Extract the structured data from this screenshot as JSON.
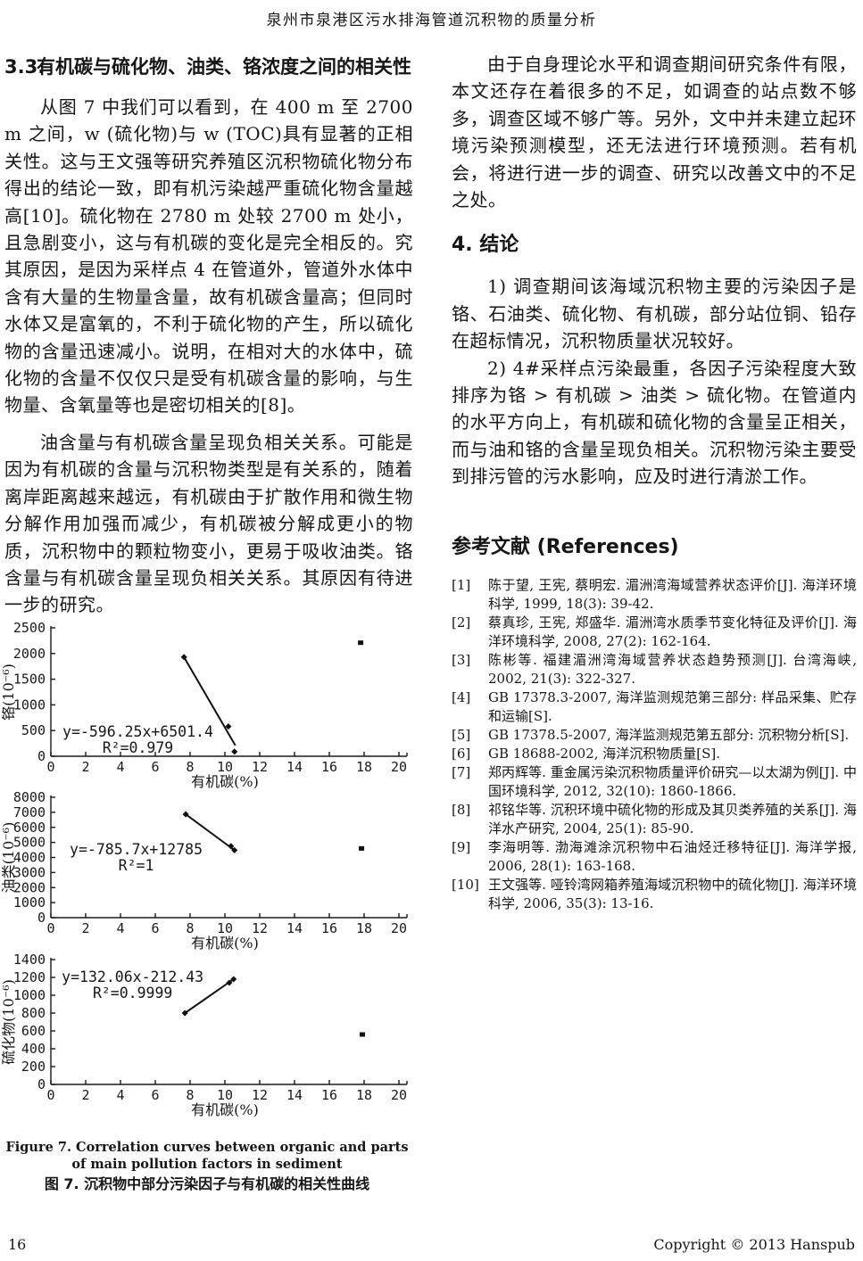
{
  "header": {
    "title": "泉州市泉港区污水排海管道沉积物的质量分析"
  },
  "left_column": {
    "section": {
      "number": "3.3.",
      "title": "有机碳与硫化物、油类、铬浓度之间的相关性"
    },
    "paragraphs": [
      "从图 7 中我们可以看到，在 400 m 至 2700 m 之间，w (硫化物)与 w (TOC)具有显著的正相关性。这与王文强等研究养殖区沉积物硫化物分布得出的结论一致，即有机污染越严重硫化物含量越高[10]。硫化物在 2780 m 处较 2700 m 处小，且急剧变小，这与有机碳的变化是完全相反的。究其原因，是因为采样点 4 在管道外，管道外水体中含有大量的生物量含量，故有机碳含量高；但同时水体又是富氧的，不利于硫化物的产生，所以硫化物的含量迅速减小。说明，在相对大的水体中，硫化物的含量不仅仅只是受有机碳含量的影响，与生物量、含氧量等也是密切相关的[8]。",
      "油含量与有机碳含量呈现负相关关系。可能是因为有机碳的含量与沉积物类型是有关系的，随着离岸距离越来越远，有机碳由于扩散作用和微生物分解作用加强而减少，有机碳被分解成更小的物质，沉积物中的颗粒物变小，更易于吸收油类。铬含量与有机碳含量呈现负相关关系。其原因有待进一步的研究。"
    ]
  },
  "right_column": {
    "paragraph_intro": "由于自身理论水平和调查期间研究条件有限，本文还存在着很多的不足，如调查的站点数不够多，调查区域不够广等。另外，文中并未建立起环境污染预测模型，还无法进行环境预测。若有机会，将进行进一步的调查、研究以改善文中的不足之处。",
    "section4_heading": "4. 结论",
    "conclusions": [
      "1) 调查期间该海域沉积物主要的污染因子是铬、石油类、硫化物、有机碳，部分站位铜、铅存在超标情况，沉积物质量状况较好。",
      "2) 4#采样点污染最重，各因子污染程度大致排序为铬 > 有机碳 > 油类 > 硫化物。在管道内的水平方向上，有机碳和硫化物的含量呈正相关，而与油和铬的含量呈现负相关。沉积物污染主要受到排污管的污水影响，应及时进行清淤工作。"
    ],
    "references_heading": "参考文献 (References)",
    "references": [
      {
        "num": "[1]",
        "text": "陈于望, 王宪, 蔡明宏. 湄洲湾海域营养状态评价[J]. 海洋环境科学, 1999, 18(3): 39-42."
      },
      {
        "num": "[2]",
        "text": "蔡真珍, 王宪, 郑盛华. 湄洲湾水质季节变化特征及评价[J]. 海洋环境科学, 2008, 27(2): 162-164."
      },
      {
        "num": "[3]",
        "text": "陈彬等. 福建湄洲湾海域营养状态趋势预测[J]. 台湾海峡, 2002, 21(3): 322-327."
      },
      {
        "num": "[4]",
        "text": "GB 17378.3-2007, 海洋监测规范第三部分: 样品采集、贮存和运输[S]."
      },
      {
        "num": "[5]",
        "text": "GB 17378.5-2007, 海洋监测规范第五部分: 沉积物分析[S]."
      },
      {
        "num": "[6]",
        "text": "GB 18688-2002, 海洋沉积物质量[S]."
      },
      {
        "num": "[7]",
        "text": "郑丙辉等. 重金属污染沉积物质量评价研究—以太湖为例[J]. 中国环境科学, 2012, 32(10): 1860-1866."
      },
      {
        "num": "[8]",
        "text": "祁铭华等. 沉积环境中硫化物的形成及其贝类养殖的关系[J]. 海洋水产研究, 2004, 25(1): 85-90."
      },
      {
        "num": "[9]",
        "text": "李海明等. 渤海滩涂沉积物中石油烃迁移特征[J]. 海洋学报, 2006, 28(1): 163-168."
      },
      {
        "num": "[10]",
        "text": "王文强等. 哑铃湾网箱养殖海域沉积物中的硫化物[J]. 海洋环境科学, 2006, 35(3): 13-16."
      }
    ]
  },
  "figure_caption": {
    "en": "Figure 7. Correlation curves between organic and parts of main pollution factors in sediment",
    "zh": "图 7. 沉积物中部分污染因子与有机碳的相关性曲线"
  },
  "footer": {
    "page_number": "16",
    "copyright": "Copyright © 2013 Hanspub"
  },
  "chart_data": [
    {
      "type": "scatter",
      "xlabel": "有机碳(%)",
      "ylabel": "铬(10⁻⁶)",
      "xlim": [
        0,
        20
      ],
      "xstep": 2,
      "ylim": [
        0,
        2500
      ],
      "ystep": 500,
      "grid": false,
      "points": [
        [
          7.65,
          1930
        ],
        [
          10.2,
          580
        ],
        [
          10.55,
          90
        ]
      ],
      "square_point": [
        17.8,
        2210
      ],
      "trend": [
        [
          7.65,
          1930
        ],
        [
          10.6,
          210
        ]
      ],
      "equation": "y=-596.25x+6501.4",
      "r_squared": "R²=0.979",
      "eq_anchor": [
        5.0,
        470
      ]
    },
    {
      "type": "scatter",
      "xlabel": "有机碳(%)",
      "ylabel": "油类(10⁻⁶)",
      "xlim": [
        0,
        20
      ],
      "xstep": 2,
      "ylim": [
        0,
        8000
      ],
      "ystep": 1000,
      "grid": false,
      "points": [
        [
          7.75,
          6870
        ],
        [
          10.35,
          4750
        ],
        [
          10.55,
          4480
        ]
      ],
      "square_point": [
        17.85,
        4600
      ],
      "trend": [
        [
          7.75,
          6870
        ],
        [
          10.55,
          4480
        ]
      ],
      "equation": "y=-785.7x+12785",
      "r_squared": "R²=1",
      "eq_anchor": [
        4.9,
        4500
      ]
    },
    {
      "type": "scatter",
      "xlabel": "有机碳(%)",
      "ylabel": "硫化物(10⁻⁶)",
      "xlim": [
        0,
        20
      ],
      "xstep": 2,
      "ylim": [
        0,
        1400
      ],
      "ystep": 200,
      "grid": false,
      "points": [
        [
          7.7,
          800
        ],
        [
          10.25,
          1140
        ],
        [
          10.5,
          1180
        ]
      ],
      "square_point": [
        17.9,
        560
      ],
      "trend": [
        [
          7.7,
          800
        ],
        [
          10.5,
          1180
        ]
      ],
      "equation": "y=132.06x-212.43",
      "r_squared": "R²=0.9999",
      "eq_anchor": [
        4.7,
        1200
      ]
    }
  ]
}
